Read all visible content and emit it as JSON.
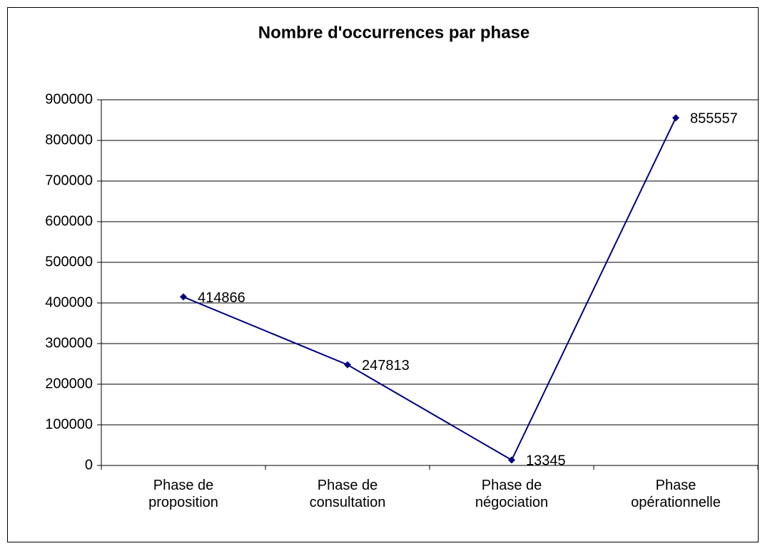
{
  "chart_data": {
    "type": "line",
    "title": "Nombre d'occurrences par phase",
    "categories": [
      "Phase de\nproposition",
      "Phase de\nconsultation",
      "Phase de\nnégociation",
      "Phase\nopérationnelle"
    ],
    "values": [
      414866,
      247813,
      13345,
      855557
    ],
    "color": "#000080",
    "ylim": [
      0,
      900000
    ],
    "yticks": [
      0,
      100000,
      200000,
      300000,
      400000,
      500000,
      600000,
      700000,
      800000,
      900000
    ],
    "grid": true
  }
}
